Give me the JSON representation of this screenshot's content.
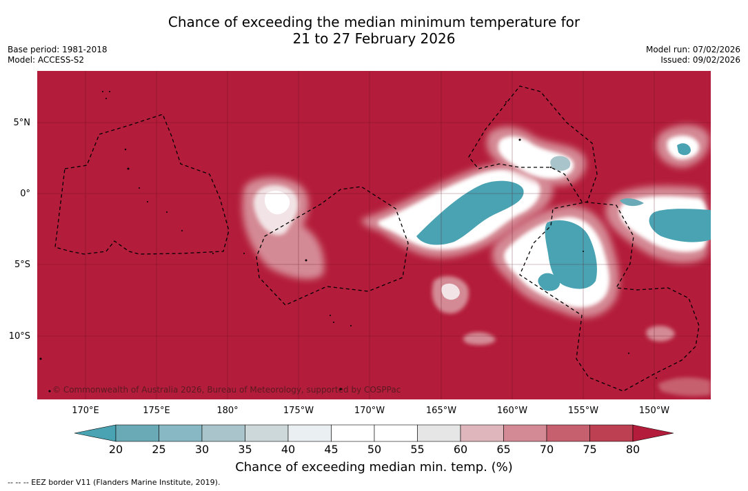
{
  "title": {
    "line1": "Chance of exceeding the median minimum temperature for",
    "line2": "21 to 27 February 2026"
  },
  "meta": {
    "base_period": "Base period: 1981-2018",
    "model": "Model: ACCESS-S2",
    "model_run": "Model run: 07/02/2026",
    "issued": "Issued: 09/02/2026"
  },
  "map": {
    "copyright": "© Commonwealth of Australia 2026, Bureau of Meteorology, supported by COSPPac",
    "lat_labels": [
      "5°N",
      "0°",
      "5°S",
      "10°S"
    ],
    "lon_labels": [
      "170°E",
      "175°E",
      "180°",
      "175°W",
      "170°W",
      "165°W",
      "160°W",
      "155°W",
      "150°W"
    ]
  },
  "colorbar": {
    "ticks": [
      "20",
      "25",
      "30",
      "35",
      "40",
      "45",
      "50",
      "55",
      "60",
      "65",
      "70",
      "75",
      "80"
    ],
    "colors": {
      "below": "#4aa3b3",
      "b20_25": "#6aaab6",
      "b25_30": "#88b8c4",
      "b30_35": "#a9c5cb",
      "b35_40": "#cdd8da",
      "b40_45": "#eaf0f2",
      "b45_50": "#ffffff",
      "b50_55": "#ffffff",
      "b55_60": "#e6e6e6",
      "b60_65": "#dfb6bc",
      "b65_70": "#d48a94",
      "b70_75": "#c65f6e",
      "b75_80": "#bd4052",
      "above": "#b31c3a"
    },
    "label": "Chance of exceeding median min. temp. (%)"
  },
  "footer": "-- -- -- EEZ border V11 (Flanders Marine Institute, 2019)."
}
